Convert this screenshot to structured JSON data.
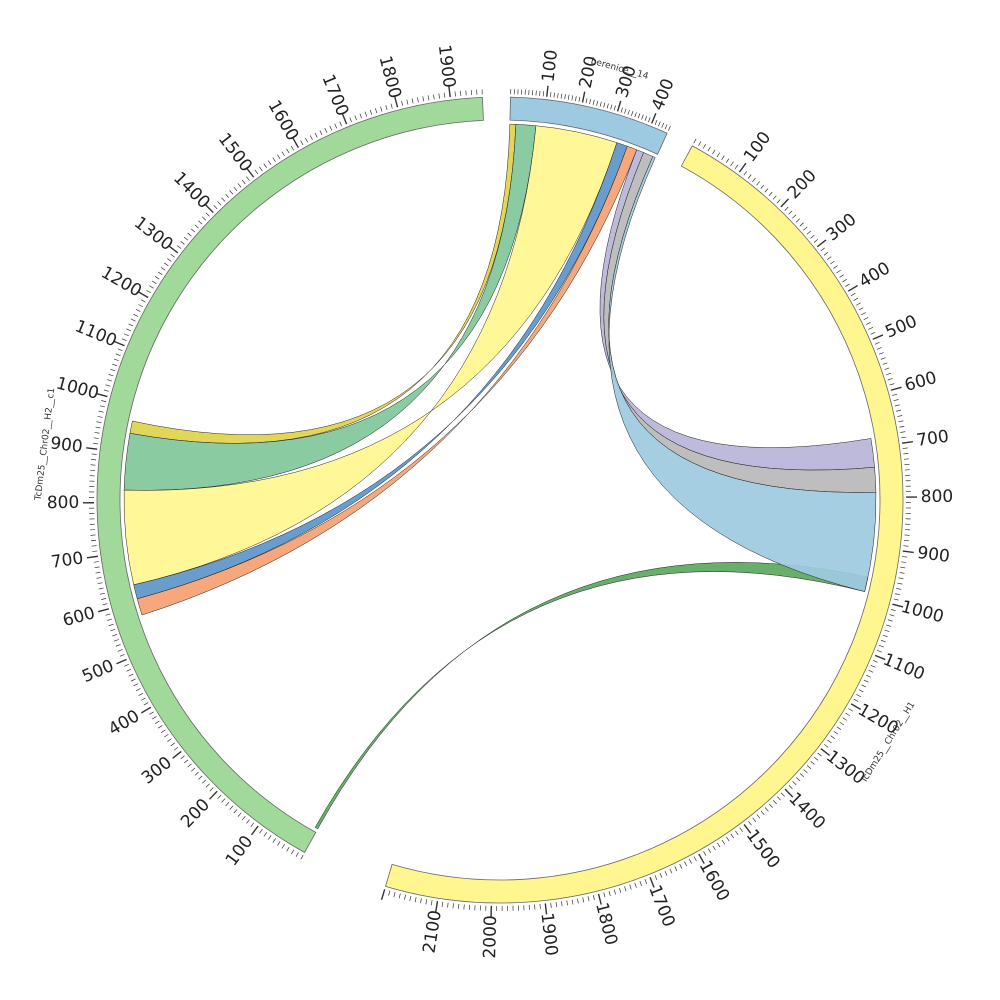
{
  "diagram": {
    "type": "chord",
    "segments": [
      {
        "id": "berenice",
        "name": "berenice__14",
        "length": 450,
        "color": "#9ecae1",
        "tick_labels": [
          "100",
          "200",
          "300",
          "400"
        ]
      },
      {
        "id": "h1",
        "name": "TcDm25__Chr02__H1",
        "length": 2200,
        "color": "#fff68f",
        "tick_labels": [
          "100",
          "200",
          "300",
          "400",
          "500",
          "600",
          "700",
          "800",
          "900",
          "1000",
          "1100",
          "1200",
          "1300",
          "1400",
          "1500",
          "1600",
          "1700",
          "1800",
          "1900",
          "2000",
          "2100"
        ]
      },
      {
        "id": "h2",
        "name": "TcDm25__Chr02__H2__c1",
        "length": 1960,
        "color": "#a1d99b",
        "tick_labels": [
          "100",
          "200",
          "300",
          "400",
          "500",
          "600",
          "700",
          "800",
          "900",
          "1000",
          "1100",
          "1200",
          "1300",
          "1400",
          "1500",
          "1600",
          "1700",
          "1800",
          "1900"
        ]
      }
    ],
    "links": [
      {
        "a": [
          "berenice",
          0,
          18
        ],
        "b": [
          "h2",
          940,
          965
        ],
        "color": "#e0d24a"
      },
      {
        "a": [
          "h2",
          0,
          6
        ],
        "b": [
          "h1",
          960,
          990
        ],
        "color": "#5aa85e"
      },
      {
        "a": [
          "berenice",
          18,
          78
        ],
        "b": [
          "h2",
          825,
          940
        ],
        "color": "#80c79a"
      },
      {
        "a": [
          "berenice",
          78,
          325
        ],
        "b": [
          "h2",
          633,
          825
        ],
        "color": "#fff68f"
      },
      {
        "a": [
          "berenice",
          325,
          358
        ],
        "b": [
          "h2",
          604,
          633
        ],
        "color": "#5b95c9"
      },
      {
        "a": [
          "berenice",
          358,
          388
        ],
        "b": [
          "h2",
          570,
          604
        ],
        "color": "#f5a070"
      },
      {
        "a": [
          "berenice",
          388,
          410
        ],
        "b": [
          "h1",
          682,
          740
        ],
        "color": "#b9b4d9"
      },
      {
        "a": [
          "berenice",
          410,
          440
        ],
        "b": [
          "h1",
          740,
          790
        ],
        "color": "#b8b8b8"
      },
      {
        "a": [
          "berenice",
          440,
          448
        ],
        "b": [
          "h1",
          790,
          990
        ],
        "color": "#9ecae1"
      }
    ]
  }
}
